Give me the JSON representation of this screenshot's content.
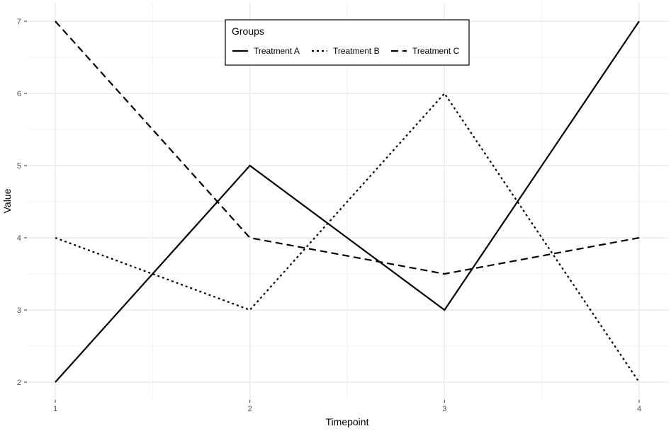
{
  "chart_data": {
    "type": "line",
    "title": "",
    "xlabel": "Timepoint",
    "ylabel": "Value",
    "x": [
      1,
      2,
      3,
      4
    ],
    "xlim": [
      1,
      4
    ],
    "ylim": [
      2,
      7
    ],
    "xticks": [
      "1",
      "2",
      "3",
      "4"
    ],
    "yticks": [
      "2",
      "3",
      "4",
      "5",
      "6",
      "7"
    ],
    "grid": true,
    "legend": {
      "title": "Groups",
      "placement": "top-center",
      "orientation": "horizontal"
    },
    "series": [
      {
        "name": "Treatment A",
        "values": [
          2,
          5,
          3,
          7
        ],
        "linestyle": "solid",
        "color": "#000000"
      },
      {
        "name": "Treatment B",
        "values": [
          4,
          3,
          6,
          2
        ],
        "linestyle": "dotted",
        "color": "#000000"
      },
      {
        "name": "Treatment C",
        "values": [
          7,
          4,
          3.5,
          4
        ],
        "linestyle": "dashed",
        "color": "#000000"
      }
    ],
    "colors": {
      "grid_major": "#ebebe0",
      "grid_minor": "#f3f3ea",
      "background": "#ffffff"
    }
  }
}
